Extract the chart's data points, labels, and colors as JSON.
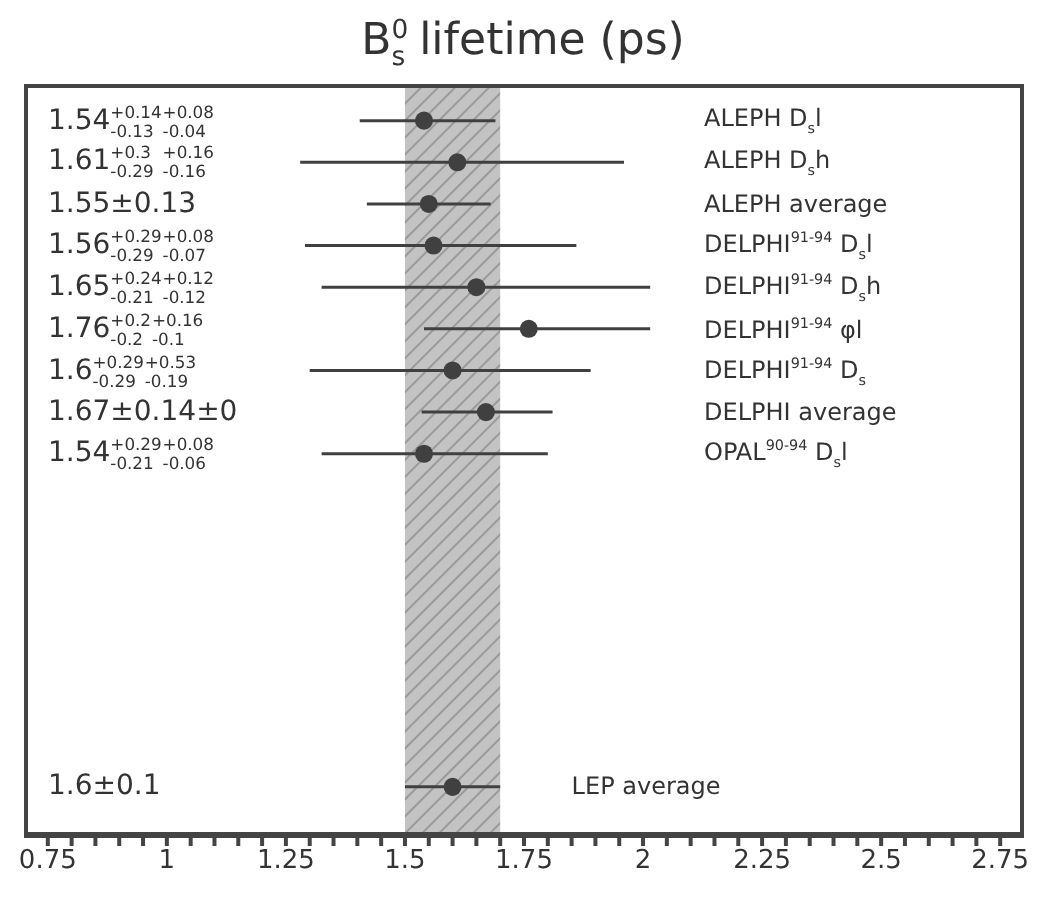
{
  "chart_data": {
    "type": "scatter",
    "title": "B$^{0}$$_{s}$ lifetime (ps)",
    "orientation": "horizontal",
    "categories": [
      "ALEPH D$_{s}$l",
      "ALEPH D$_{s}$h",
      "ALEPH average",
      "DELPHI$^{91-94}$ D$_{s}$l",
      "DELPHI$^{91-94}$ D$_{s}$h",
      "DELPHI$^{91-94}$ φl",
      "DELPHI$^{91-94}$ D$_{s}$",
      "DELPHI average",
      "OPAL$^{90-94}$ D$_{s}$l",
      null,
      null,
      null,
      null,
      null,
      null,
      null,
      "LEP average"
    ],
    "values": [
      1.54,
      1.61,
      1.55,
      1.56,
      1.65,
      1.76,
      1.6,
      1.67,
      1.54,
      null,
      null,
      null,
      null,
      null,
      null,
      null,
      1.6
    ],
    "errors": [
      [
        1.405,
        1.69
      ],
      [
        1.28,
        1.96
      ],
      [
        1.42,
        1.68
      ],
      [
        1.29,
        1.86
      ],
      [
        1.325,
        2.015
      ],
      [
        1.54,
        2.015
      ],
      [
        1.3,
        1.89
      ],
      [
        1.535,
        1.81
      ],
      [
        1.325,
        1.8
      ],
      null,
      null,
      null,
      null,
      null,
      null,
      null,
      [
        1.5,
        1.7
      ]
    ],
    "annotations": [
      "1.54$^{+0.14}$$_{-0.13}$ $^{+0.08}$$_{-0.04}$",
      "1.61$^{+0.3}$$_{-0.29}$ $^{+0.16}$$_{-0.16}$",
      "1.55±0.13",
      "1.56$^{+0.29}$$_{-0.29}$ $^{+0.08}$$_{-0.07}$",
      "1.65$^{+0.24}$$_{-0.21}$ $^{+0.12}$$_{-0.12}$",
      "1.76$^{+0.2}$$_{-0.2}$ $^{+0.16}$$_{-0.1}$",
      "1.6$^{+0.29}$$_{-0.29}$ $^{+0.53}$$_{-0.19}$",
      "1.67±0.14±0",
      "1.54$^{+0.29}$$_{-0.21}$ $^{+0.08}$$_{-0.06}$",
      "1.6±0.1"
    ],
    "color": "#404040",
    "bands": [
      {
        "axis": "x",
        "from": 1.5,
        "to": 1.7,
        "color": "#b8b8b8"
      }
    ],
    "xlim": [
      0.7,
      2.8
    ],
    "xticks": [
      0.75,
      {
        "value": 0.8,
        "label": null
      },
      {
        "value": 0.85,
        "label": null
      },
      {
        "value": 0.9,
        "label": null
      },
      {
        "value": 0.95,
        "label": null
      },
      1,
      {
        "value": 1.05,
        "label": null
      },
      {
        "value": 1.1,
        "label": null
      },
      {
        "value": 1.15,
        "label": null
      },
      {
        "value": 1.2,
        "label": null
      },
      1.25,
      {
        "value": 1.3,
        "label": null
      },
      {
        "value": 1.35,
        "label": null
      },
      {
        "value": 1.4,
        "label": null
      },
      {
        "value": 1.45,
        "label": null
      },
      1.5,
      {
        "value": 1.55,
        "label": null
      },
      {
        "value": 1.6,
        "label": null
      },
      {
        "value": 1.65,
        "label": null
      },
      {
        "value": 1.7,
        "label": null
      },
      1.75,
      {
        "value": 1.8,
        "label": null
      },
      {
        "value": 1.85,
        "label": null
      },
      {
        "value": 1.9,
        "label": null
      },
      {
        "value": 1.95,
        "label": null
      },
      2,
      {
        "value": 2.05,
        "label": null
      },
      {
        "value": 2.1,
        "label": null
      },
      {
        "value": 2.15,
        "label": null
      },
      {
        "value": 2.2,
        "label": null
      },
      2.25,
      {
        "value": 2.3,
        "label": null
      },
      {
        "value": 2.35,
        "label": null
      },
      {
        "value": 2.4,
        "label": null
      },
      {
        "value": 2.45,
        "label": null
      },
      2.5,
      {
        "value": 2.55,
        "label": null
      },
      {
        "value": 2.6,
        "label": null
      },
      {
        "value": 2.65,
        "label": null
      },
      {
        "value": 2.7,
        "label": null
      },
      2.75
    ],
    "marker": "circle"
  }
}
